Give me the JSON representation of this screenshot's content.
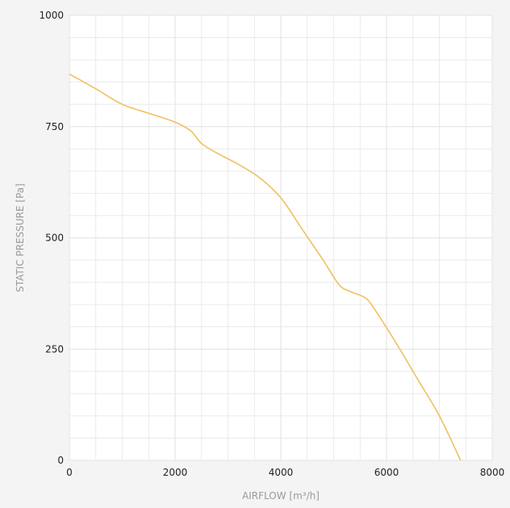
{
  "chart_data": {
    "type": "line",
    "title": "",
    "xlabel": "AIRFLOW [m³/h]",
    "ylabel": "STATIC PRESSURE [Pa]",
    "xlim": [
      0,
      8000
    ],
    "ylim": [
      0,
      1000
    ],
    "x_ticks": [
      "0",
      "2000",
      "4000",
      "6000",
      "8000"
    ],
    "y_ticks": [
      "0",
      "250",
      "500",
      "750",
      "1000"
    ],
    "grid": true,
    "series": [
      {
        "color": "#f0c060",
        "x": [
          0,
          500,
          1000,
          1500,
          2000,
          2300,
          2500,
          2800,
          3200,
          3600,
          4000,
          4400,
          4800,
          5100,
          5300,
          5600,
          5800,
          6200,
          6600,
          7000,
          7400
        ],
        "y": [
          868,
          835,
          800,
          780,
          760,
          740,
          712,
          690,
          665,
          635,
          590,
          520,
          450,
          395,
          380,
          365,
          335,
          260,
          180,
          100,
          0
        ]
      }
    ]
  },
  "colors": {
    "background": "#f4f4f4",
    "plot_background": "#ffffff",
    "grid": "#e6e6e6",
    "curve": "#f0c060"
  }
}
